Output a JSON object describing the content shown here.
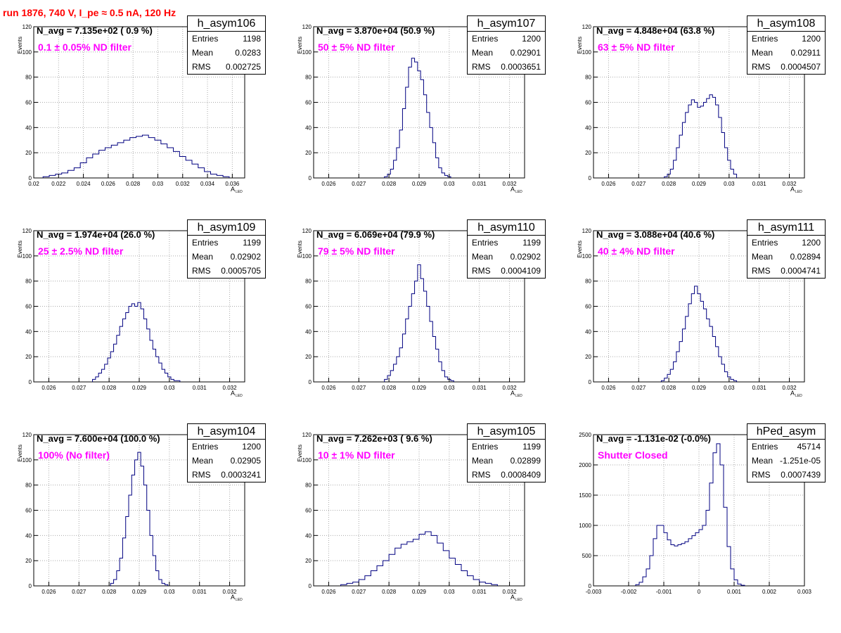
{
  "title": "run 1876,   740 V, I_pe ≈ 0.5 nA, 120 Hz",
  "chart_data": [
    {
      "type": "bar",
      "name": "h_asym106",
      "navg": "N_avg = 7.135e+02 ( 0.9 %)",
      "annotation": "0.1 ± 0.05% ND filter",
      "stats": {
        "entries": "1198",
        "mean": "0.0283",
        "rms": "0.002725"
      },
      "ylabel": "Events",
      "xlabel": "A",
      "xlabel_sub": "LED",
      "xlim": [
        0.02,
        0.037
      ],
      "ylim": [
        0,
        120
      ],
      "xticks": [
        "0.02",
        "0.022",
        "0.024",
        "0.026",
        "0.028",
        "0.03",
        "0.032",
        "0.034",
        "0.036"
      ],
      "yticks": [
        "0",
        "20",
        "40",
        "60",
        "80",
        "100",
        "120"
      ],
      "x": [
        0.021,
        0.0215,
        0.022,
        0.0225,
        0.023,
        0.0235,
        0.024,
        0.0245,
        0.025,
        0.0255,
        0.026,
        0.0265,
        0.027,
        0.0275,
        0.028,
        0.0285,
        0.029,
        0.0295,
        0.03,
        0.0305,
        0.031,
        0.0315,
        0.032,
        0.0325,
        0.033,
        0.0335,
        0.034,
        0.0345,
        0.035,
        0.0355
      ],
      "values": [
        1,
        2,
        3,
        4,
        6,
        8,
        12,
        16,
        19,
        22,
        24,
        26,
        28,
        30,
        32,
        33,
        34,
        32,
        30,
        27,
        24,
        21,
        17,
        14,
        11,
        8,
        5,
        3,
        2,
        1
      ]
    },
    {
      "type": "bar",
      "name": "h_asym107",
      "navg": "N_avg = 3.870e+04 (50.9 %)",
      "annotation": "50 ± 5% ND filter",
      "stats": {
        "entries": "1200",
        "mean": "0.02901",
        "rms": "0.0003651"
      },
      "ylabel": "Events",
      "xlabel": "A",
      "xlabel_sub": "LED",
      "xlim": [
        0.0255,
        0.0325
      ],
      "ylim": [
        0,
        120
      ],
      "xticks": [
        "0.026",
        "0.027",
        "0.028",
        "0.029",
        "0.03",
        "0.031",
        "0.032"
      ],
      "yticks": [
        "0",
        "20",
        "40",
        "60",
        "80",
        "100",
        "120"
      ],
      "x": [
        0.0279,
        0.028,
        0.0281,
        0.0282,
        0.0283,
        0.0284,
        0.0285,
        0.0286,
        0.0287,
        0.0288,
        0.0289,
        0.029,
        0.0291,
        0.0292,
        0.0293,
        0.0294,
        0.0295,
        0.0296,
        0.0297,
        0.0298,
        0.0299,
        0.03
      ],
      "values": [
        1,
        3,
        7,
        14,
        24,
        38,
        55,
        72,
        88,
        95,
        92,
        85,
        78,
        66,
        52,
        40,
        28,
        16,
        8,
        4,
        2,
        1
      ]
    },
    {
      "type": "bar",
      "name": "h_asym108",
      "navg": "N_avg = 4.848e+04 (63.8 %)",
      "annotation": "63 ± 5% ND filter",
      "stats": {
        "entries": "1200",
        "mean": "0.02911",
        "rms": "0.0004507"
      },
      "ylabel": "Events",
      "xlabel": "A",
      "xlabel_sub": "LED",
      "xlim": [
        0.0255,
        0.0325
      ],
      "ylim": [
        0,
        120
      ],
      "xticks": [
        "0.026",
        "0.027",
        "0.028",
        "0.029",
        "0.03",
        "0.031",
        "0.032"
      ],
      "yticks": [
        "0",
        "20",
        "40",
        "60",
        "80",
        "100",
        "120"
      ],
      "x": [
        0.0279,
        0.028,
        0.0281,
        0.0282,
        0.0283,
        0.0284,
        0.0285,
        0.0286,
        0.0287,
        0.0288,
        0.0289,
        0.029,
        0.0291,
        0.0292,
        0.0293,
        0.0294,
        0.0295,
        0.0296,
        0.0297,
        0.0298,
        0.0299,
        0.03,
        0.0301,
        0.0302
      ],
      "values": [
        1,
        3,
        7,
        14,
        24,
        34,
        44,
        52,
        58,
        62,
        60,
        56,
        57,
        60,
        63,
        66,
        64,
        58,
        48,
        36,
        24,
        14,
        7,
        3
      ]
    },
    {
      "type": "bar",
      "name": "h_asym109",
      "navg": "N_avg = 1.974e+04 (26.0 %)",
      "annotation": "25 ± 2.5% ND filter",
      "stats": {
        "entries": "1199",
        "mean": "0.02902",
        "rms": "0.0005705"
      },
      "ylabel": "Events",
      "xlabel": "A",
      "xlabel_sub": "LED",
      "xlim": [
        0.0255,
        0.0325
      ],
      "ylim": [
        0,
        120
      ],
      "xticks": [
        "0.026",
        "0.027",
        "0.028",
        "0.029",
        "0.03",
        "0.031",
        "0.032"
      ],
      "yticks": [
        "0",
        "20",
        "40",
        "60",
        "80",
        "100",
        "120"
      ],
      "x": [
        0.0275,
        0.0276,
        0.0277,
        0.0278,
        0.0279,
        0.028,
        0.0281,
        0.0282,
        0.0283,
        0.0284,
        0.0285,
        0.0286,
        0.0287,
        0.0288,
        0.0289,
        0.029,
        0.0291,
        0.0292,
        0.0293,
        0.0294,
        0.0295,
        0.0296,
        0.0297,
        0.0298,
        0.0299,
        0.03,
        0.0301,
        0.0302,
        0.0303
      ],
      "values": [
        2,
        4,
        7,
        10,
        14,
        19,
        24,
        30,
        37,
        44,
        50,
        55,
        60,
        62,
        60,
        63,
        58,
        50,
        42,
        33,
        26,
        20,
        15,
        10,
        7,
        4,
        2,
        1,
        1
      ]
    },
    {
      "type": "bar",
      "name": "h_asym110",
      "navg": "N_avg = 6.069e+04 (79.9 %)",
      "annotation": "79 ± 5% ND filter",
      "stats": {
        "entries": "1199",
        "mean": "0.02902",
        "rms": "0.0004109"
      },
      "ylabel": "Events",
      "xlabel": "A",
      "xlabel_sub": "LED",
      "xlim": [
        0.0255,
        0.0325
      ],
      "ylim": [
        0,
        120
      ],
      "xticks": [
        "0.026",
        "0.027",
        "0.028",
        "0.029",
        "0.03",
        "0.031",
        "0.032"
      ],
      "yticks": [
        "0",
        "20",
        "40",
        "60",
        "80",
        "100",
        "120"
      ],
      "x": [
        0.0279,
        0.028,
        0.0281,
        0.0282,
        0.0283,
        0.0284,
        0.0285,
        0.0286,
        0.0287,
        0.0288,
        0.0289,
        0.029,
        0.0291,
        0.0292,
        0.0293,
        0.0294,
        0.0295,
        0.0296,
        0.0297,
        0.0298,
        0.0299,
        0.03,
        0.0301
      ],
      "values": [
        2,
        5,
        9,
        14,
        20,
        27,
        38,
        50,
        60,
        70,
        80,
        93,
        82,
        72,
        60,
        48,
        36,
        26,
        16,
        9,
        4,
        2,
        1
      ]
    },
    {
      "type": "bar",
      "name": "h_asym111",
      "navg": "N_avg = 3.088e+04 (40.6 %)",
      "annotation": "40 ± 4% ND filter",
      "stats": {
        "entries": "1200",
        "mean": "0.02894",
        "rms": "0.0004741"
      },
      "ylabel": "Events",
      "xlabel": "A",
      "xlabel_sub": "LED",
      "xlim": [
        0.0255,
        0.0325
      ],
      "ylim": [
        0,
        120
      ],
      "xticks": [
        "0.026",
        "0.027",
        "0.028",
        "0.029",
        "0.03",
        "0.031",
        "0.032"
      ],
      "yticks": [
        "0",
        "20",
        "40",
        "60",
        "80",
        "100",
        "120"
      ],
      "x": [
        0.0278,
        0.0279,
        0.028,
        0.0281,
        0.0282,
        0.0283,
        0.0284,
        0.0285,
        0.0286,
        0.0287,
        0.0288,
        0.0289,
        0.029,
        0.0291,
        0.0292,
        0.0293,
        0.0294,
        0.0295,
        0.0296,
        0.0297,
        0.0298,
        0.0299,
        0.03,
        0.0301,
        0.0302
      ],
      "values": [
        1,
        3,
        6,
        10,
        16,
        24,
        32,
        42,
        52,
        62,
        70,
        76,
        70,
        64,
        58,
        50,
        44,
        36,
        28,
        20,
        14,
        8,
        4,
        2,
        1
      ]
    },
    {
      "type": "bar",
      "name": "h_asym104",
      "navg": "N_avg = 7.600e+04 (100.0 %)",
      "annotation": "100% (No filter)",
      "stats": {
        "entries": "1200",
        "mean": "0.02905",
        "rms": "0.0003241"
      },
      "ylabel": "Events",
      "xlabel": "A",
      "xlabel_sub": "LED",
      "xlim": [
        0.0255,
        0.0325
      ],
      "ylim": [
        0,
        120
      ],
      "xticks": [
        "0.026",
        "0.027",
        "0.028",
        "0.029",
        "0.03",
        "0.031",
        "0.032"
      ],
      "yticks": [
        "0",
        "20",
        "40",
        "60",
        "80",
        "100",
        "120"
      ],
      "x": [
        0.0281,
        0.0282,
        0.0283,
        0.0284,
        0.0285,
        0.0286,
        0.0287,
        0.0288,
        0.0289,
        0.029,
        0.0291,
        0.0292,
        0.0293,
        0.0294,
        0.0295,
        0.0296,
        0.0297,
        0.0298,
        0.0299
      ],
      "values": [
        2,
        5,
        12,
        22,
        38,
        55,
        72,
        88,
        100,
        106,
        95,
        80,
        60,
        40,
        24,
        12,
        5,
        2,
        1
      ]
    },
    {
      "type": "bar",
      "name": "h_asym105",
      "navg": "N_avg = 7.262e+03 ( 9.6 %)",
      "annotation": "10 ± 1% ND filter",
      "stats": {
        "entries": "1199",
        "mean": "0.02899",
        "rms": "0.0008409"
      },
      "ylabel": "Events",
      "xlabel": "A",
      "xlabel_sub": "LED",
      "xlim": [
        0.0255,
        0.0325
      ],
      "ylim": [
        0,
        120
      ],
      "xticks": [
        "0.026",
        "0.027",
        "0.028",
        "0.029",
        "0.03",
        "0.031",
        "0.032"
      ],
      "yticks": [
        "0",
        "20",
        "40",
        "60",
        "80",
        "100",
        "120"
      ],
      "x": [
        0.0265,
        0.0267,
        0.0269,
        0.0271,
        0.0273,
        0.0275,
        0.0277,
        0.0279,
        0.0281,
        0.0283,
        0.0285,
        0.0287,
        0.0289,
        0.0291,
        0.0293,
        0.0295,
        0.0297,
        0.0299,
        0.0301,
        0.0303,
        0.0305,
        0.0307,
        0.0309,
        0.0311,
        0.0313,
        0.0315
      ],
      "values": [
        1,
        2,
        3,
        5,
        8,
        12,
        16,
        20,
        25,
        30,
        33,
        35,
        37,
        41,
        43,
        40,
        34,
        28,
        22,
        17,
        12,
        8,
        5,
        3,
        2,
        1
      ]
    },
    {
      "type": "bar",
      "name": "hPed_asym",
      "navg": "N_avg = -1.131e-02 (-0.0%)",
      "annotation": "Shutter Closed",
      "stats": {
        "entries": "45714",
        "mean": "-1.251e-05",
        "rms": "0.0007439"
      },
      "ylabel": "",
      "xlabel": "",
      "xlabel_sub": "",
      "xlim": [
        -0.003,
        0.003
      ],
      "ylim": [
        0,
        2500
      ],
      "xticks": [
        "-0.003",
        "-0.002",
        "-0.001",
        "0",
        "0.001",
        "0.002",
        "0.003"
      ],
      "yticks": [
        "0",
        "500",
        "1000",
        "1500",
        "2000",
        "2500"
      ],
      "x": [
        -0.00175,
        -0.00165,
        -0.00155,
        -0.00145,
        -0.00135,
        -0.00125,
        -0.00115,
        -0.00105,
        -0.00095,
        -0.00085,
        -0.00075,
        -0.00065,
        -0.00055,
        -0.00045,
        -0.00035,
        -0.00025,
        -0.00015,
        -5e-05,
        5e-05,
        0.00015,
        0.00025,
        0.00035,
        0.00045,
        0.00055,
        0.00065,
        0.00075,
        0.00085,
        0.00095,
        0.00105,
        0.00115,
        0.00125
      ],
      "values": [
        20,
        60,
        150,
        280,
        500,
        780,
        1000,
        1000,
        880,
        760,
        680,
        660,
        680,
        700,
        730,
        780,
        830,
        880,
        930,
        1000,
        1250,
        1700,
        2200,
        2350,
        2000,
        1300,
        650,
        280,
        100,
        30,
        10
      ]
    }
  ]
}
